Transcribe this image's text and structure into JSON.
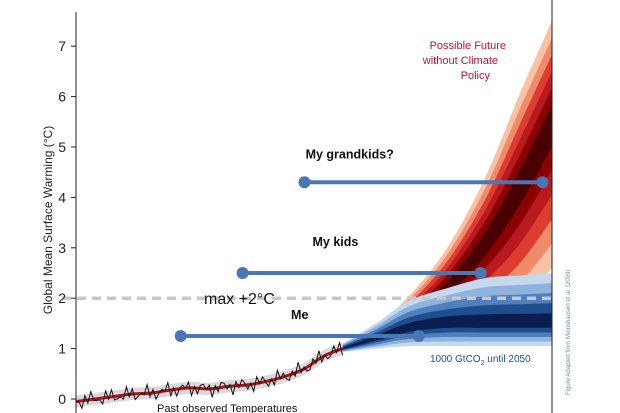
{
  "chart_data": {
    "type": "area",
    "ylabel": "Global Mean Surface Warming (°C)",
    "ylim": [
      0,
      7.5
    ],
    "yticks": [
      0,
      1,
      2,
      3,
      4,
      5,
      6,
      7
    ],
    "x_range": [
      "past",
      "2100"
    ],
    "grid": false,
    "series": [
      {
        "name": "Possible Future without Climate Policy",
        "color": "#8b0000",
        "x": [
          0.56,
          0.63,
          0.7,
          0.78,
          0.86,
          0.93,
          1.0
        ],
        "lower": [
          0.93,
          1.05,
          1.18,
          1.35,
          1.6,
          1.9,
          2.6
        ],
        "median": [
          1.0,
          1.25,
          1.6,
          2.2,
          3.1,
          4.2,
          5.5
        ],
        "upper": [
          1.1,
          1.45,
          2.05,
          3.0,
          4.4,
          6.0,
          7.5
        ]
      },
      {
        "name": "1000 GtCO2 until 2050",
        "color": "#0a1f4f",
        "x": [
          0.56,
          0.63,
          0.7,
          0.78,
          0.86,
          0.93,
          1.0
        ],
        "lower": [
          0.93,
          1.0,
          1.05,
          1.05,
          1.05,
          1.05,
          1.05
        ],
        "median": [
          1.0,
          1.2,
          1.4,
          1.5,
          1.5,
          1.5,
          1.5
        ],
        "upper": [
          1.1,
          1.5,
          1.95,
          2.2,
          2.4,
          2.45,
          2.5
        ]
      }
    ],
    "observed": {
      "name": "Past observed Temperatures",
      "x": [
        0.0,
        0.04,
        0.08,
        0.12,
        0.16,
        0.2,
        0.24,
        0.28,
        0.32,
        0.36,
        0.4,
        0.44,
        0.48,
        0.52,
        0.56
      ],
      "y": [
        -0.05,
        0.0,
        0.05,
        0.1,
        0.12,
        0.18,
        0.22,
        0.2,
        0.25,
        0.28,
        0.35,
        0.45,
        0.6,
        0.85,
        1.0
      ]
    },
    "reference_line": {
      "y": 2.0,
      "label": "max +2°C"
    },
    "generation_bars": [
      {
        "label": "Me",
        "y": 1.25,
        "x_start": 0.22,
        "x_end": 0.72
      },
      {
        "label": "My kids",
        "y": 2.5,
        "x_start": 0.35,
        "x_end": 0.85
      },
      {
        "label": "My grandkids?",
        "y": 4.3,
        "x_start": 0.48,
        "x_end": 0.98
      }
    ],
    "annotations": {
      "red": [
        "Possible Future",
        "without Climate",
        "Policy"
      ],
      "blue_prefix": "1000 GtCO",
      "blue_sub": "2",
      "blue_suffix": " until 2050",
      "credit": "Figure Adapted from Meinshausen et al. (2009)"
    }
  },
  "colors": {
    "red_bands": [
      "#f8c2a4",
      "#ef8a6b",
      "#dd3d30",
      "#b81a20",
      "#8b0000",
      "#4a0000"
    ],
    "blue_bands": [
      "#c5d8ee",
      "#8fb3dc",
      "#4f7fbf",
      "#1f4e8c",
      "#0a1f4f"
    ],
    "generation_bar": "#4a76b5",
    "dashed_line": "#c8c8c8"
  }
}
